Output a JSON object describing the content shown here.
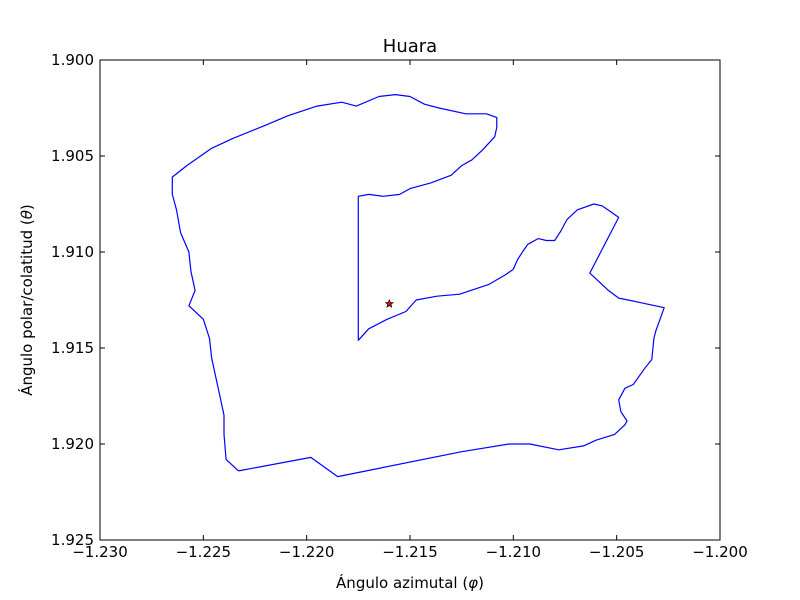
{
  "chart_data": {
    "type": "line",
    "title": "Huara",
    "xlabel": "Ángulo azimutal (φ)",
    "xlabel_main": "Ángulo azimutal (",
    "xlabel_symbol": "φ",
    "xlabel_close": ")",
    "ylabel": "Ángulo polar/colatitud (θ)",
    "ylabel_main": "Ángulo polar/colatitud (",
    "ylabel_symbol": "θ",
    "ylabel_close": ")",
    "xlim": [
      -1.23,
      -1.2
    ],
    "ylim": [
      1.925,
      1.9
    ],
    "y_inverted": true,
    "grid": false,
    "x_ticks": [
      -1.23,
      -1.225,
      -1.22,
      -1.215,
      -1.21,
      -1.205,
      -1.2
    ],
    "x_tick_labels": [
      "−1.230",
      "−1.225",
      "−1.220",
      "−1.215",
      "−1.210",
      "−1.205",
      "−1.200"
    ],
    "y_ticks": [
      1.9,
      1.905,
      1.91,
      1.915,
      1.92,
      1.925
    ],
    "y_tick_labels": [
      "1.900",
      "1.905",
      "1.910",
      "1.915",
      "1.920",
      "1.925"
    ],
    "series": [
      {
        "type": "line",
        "color": "#0000ff",
        "points": [
          [
            -1.2233,
            1.9214
          ],
          [
            -1.2198,
            1.9207
          ],
          [
            -1.2185,
            1.9217
          ],
          [
            -1.2125,
            1.9204
          ],
          [
            -1.2102,
            1.92
          ],
          [
            -1.2092,
            1.92
          ],
          [
            -1.2078,
            1.9203
          ],
          [
            -1.2066,
            1.9201
          ],
          [
            -1.206,
            1.9198
          ],
          [
            -1.2051,
            1.9195
          ],
          [
            -1.2046,
            1.919
          ],
          [
            -1.2045,
            1.9188
          ],
          [
            -1.2048,
            1.9183
          ],
          [
            -1.2049,
            1.9177
          ],
          [
            -1.2046,
            1.9171
          ],
          [
            -1.2042,
            1.9169
          ],
          [
            -1.2036,
            1.916
          ],
          [
            -1.2033,
            1.9156
          ],
          [
            -1.2032,
            1.9145
          ],
          [
            -1.2031,
            1.9141
          ],
          [
            -1.2027,
            1.9129
          ],
          [
            -1.204,
            1.9126
          ],
          [
            -1.2049,
            1.9124
          ],
          [
            -1.2054,
            1.912
          ],
          [
            -1.2063,
            1.9111
          ],
          [
            -1.2049,
            1.9082
          ],
          [
            -1.2057,
            1.9076
          ],
          [
            -1.2061,
            1.9075
          ],
          [
            -1.2069,
            1.9078
          ],
          [
            -1.2074,
            1.9083
          ],
          [
            -1.2077,
            1.9089
          ],
          [
            -1.208,
            1.9094
          ],
          [
            -1.2084,
            1.9094
          ],
          [
            -1.2088,
            1.9093
          ],
          [
            -1.2093,
            1.9096
          ],
          [
            -1.2095,
            1.9099
          ],
          [
            -1.2098,
            1.9104
          ],
          [
            -1.21,
            1.9109
          ],
          [
            -1.2104,
            1.9112
          ],
          [
            -1.2112,
            1.9117
          ],
          [
            -1.2126,
            1.9122
          ],
          [
            -1.2137,
            1.9123
          ],
          [
            -1.2147,
            1.9125
          ],
          [
            -1.2152,
            1.9131
          ],
          [
            -1.2161,
            1.9135
          ],
          [
            -1.217,
            1.914
          ],
          [
            -1.2175,
            1.9146
          ],
          [
            -1.2175,
            1.912
          ],
          [
            -1.2175,
            1.9071
          ],
          [
            -1.217,
            1.907
          ],
          [
            -1.2163,
            1.9071
          ],
          [
            -1.2155,
            1.907
          ],
          [
            -1.215,
            1.9067
          ],
          [
            -1.214,
            1.9064
          ],
          [
            -1.213,
            1.906
          ],
          [
            -1.2125,
            1.9055
          ],
          [
            -1.212,
            1.9052
          ],
          [
            -1.2115,
            1.9047
          ],
          [
            -1.2109,
            1.904
          ],
          [
            -1.2108,
            1.9035
          ],
          [
            -1.2108,
            1.903
          ],
          [
            -1.2113,
            1.9028
          ],
          [
            -1.2123,
            1.9028
          ],
          [
            -1.2136,
            1.9025
          ],
          [
            -1.2143,
            1.9023
          ],
          [
            -1.215,
            1.9019
          ],
          [
            -1.2157,
            1.9018
          ],
          [
            -1.2165,
            1.9019
          ],
          [
            -1.2176,
            1.9024
          ],
          [
            -1.2183,
            1.9022
          ],
          [
            -1.2195,
            1.9024
          ],
          [
            -1.2209,
            1.9029
          ],
          [
            -1.222,
            1.9034
          ],
          [
            -1.2236,
            1.9041
          ],
          [
            -1.2246,
            1.9046
          ],
          [
            -1.2258,
            1.9055
          ],
          [
            -1.2265,
            1.9061
          ],
          [
            -1.2265,
            1.907
          ],
          [
            -1.2263,
            1.9078
          ],
          [
            -1.2261,
            1.909
          ],
          [
            -1.2257,
            1.91
          ],
          [
            -1.2256,
            1.911
          ],
          [
            -1.2254,
            1.912
          ],
          [
            -1.2257,
            1.9128
          ],
          [
            -1.225,
            1.9135
          ],
          [
            -1.2247,
            1.9145
          ],
          [
            -1.2246,
            1.9155
          ],
          [
            -1.2244,
            1.9165
          ],
          [
            -1.2242,
            1.9175
          ],
          [
            -1.224,
            1.9185
          ],
          [
            -1.224,
            1.9195
          ],
          [
            -1.2239,
            1.9208
          ],
          [
            -1.2233,
            1.9214
          ]
        ]
      }
    ],
    "markers": [
      {
        "type": "star",
        "color": "#ff0000",
        "edge": "#000000",
        "x": -1.216,
        "y": 1.9127
      }
    ]
  }
}
